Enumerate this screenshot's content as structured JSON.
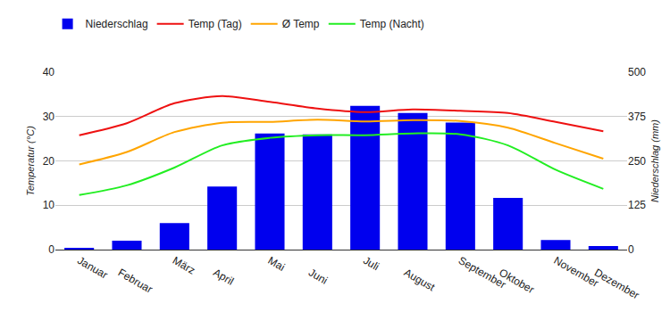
{
  "chart_data": {
    "type": "bar",
    "categories": [
      "Januar",
      "Februar",
      "März",
      "April",
      "Mai",
      "Juni",
      "Juli",
      "August",
      "September",
      "Oktober",
      "November",
      "Dezember"
    ],
    "series": [
      {
        "name": "Niederschlag",
        "type": "bar",
        "axis": "y2",
        "color": "#0000ee",
        "values": [
          5,
          25,
          75,
          178,
          327,
          325,
          405,
          385,
          358,
          146,
          27,
          10
        ]
      },
      {
        "name": "Temp (Tag)",
        "type": "line",
        "color": "#ee1111",
        "values": [
          25.8,
          28.5,
          33,
          34.6,
          33.3,
          31.8,
          31,
          31.6,
          31.3,
          30.8,
          28.8,
          26.7
        ]
      },
      {
        "name": "Ø Temp",
        "type": "line",
        "color": "#ffa500",
        "values": [
          19.2,
          22,
          26.5,
          28.6,
          28.8,
          29.3,
          28.9,
          29.2,
          29,
          27.5,
          24,
          20.5
        ]
      },
      {
        "name": "Temp (Nacht)",
        "type": "line",
        "color": "#22ee22",
        "values": [
          12.3,
          14.5,
          18.5,
          23.5,
          25.2,
          25.8,
          25.8,
          26.2,
          26,
          23.5,
          18,
          13.7
        ]
      }
    ],
    "ylabel": "Temperatur (°C)",
    "y2label": "Niederschlag (mm)",
    "ylim": [
      0,
      40
    ],
    "yticks": [
      0,
      10,
      20,
      30,
      40
    ],
    "y2lim": [
      0,
      500
    ],
    "y2ticks": [
      0,
      125,
      250,
      375,
      500
    ],
    "grid": true,
    "legend": "top-left"
  }
}
